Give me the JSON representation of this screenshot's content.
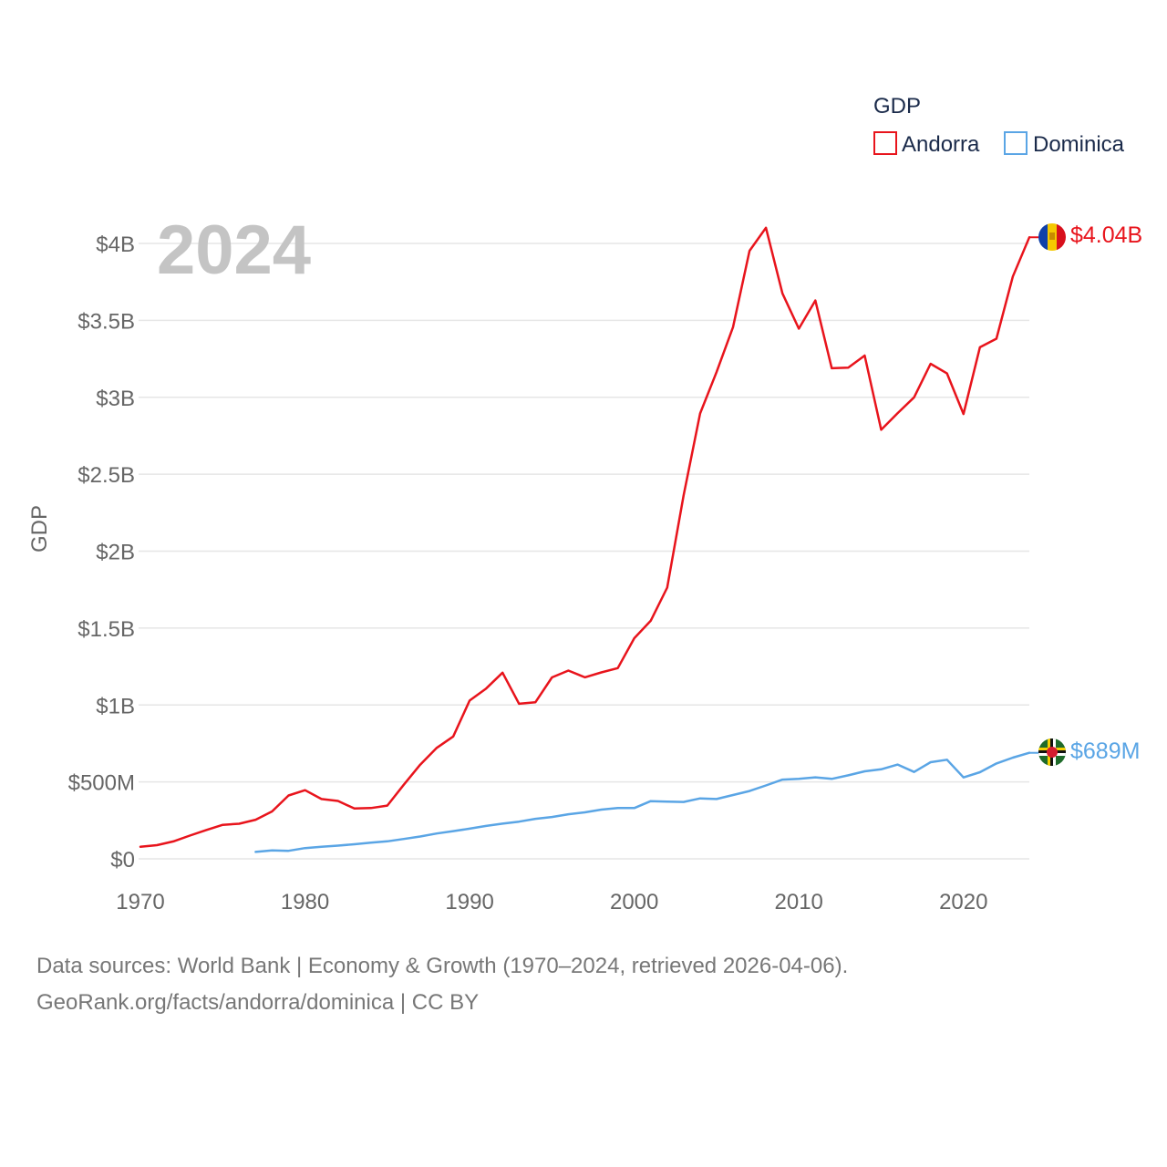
{
  "chart_data": {
    "type": "line",
    "title": "",
    "year_label": "2024",
    "ylabel": "GDP",
    "xlabel": "",
    "xlim": [
      1970,
      2024
    ],
    "ylim": [
      0,
      4000000000
    ],
    "x_ticks": [
      1970,
      1980,
      1990,
      2000,
      2010,
      2020
    ],
    "y_ticks": [
      {
        "value": 0,
        "label": "$0"
      },
      {
        "value": 500000000,
        "label": "$500M"
      },
      {
        "value": 1000000000,
        "label": "$1B"
      },
      {
        "value": 1500000000,
        "label": "$1.5B"
      },
      {
        "value": 2000000000,
        "label": "$2B"
      },
      {
        "value": 2500000000,
        "label": "$2.5B"
      },
      {
        "value": 3000000000,
        "label": "$3B"
      },
      {
        "value": 3500000000,
        "label": "$3.5B"
      },
      {
        "value": 4000000000,
        "label": "$4B"
      }
    ],
    "grid": true,
    "legend": {
      "title": "GDP",
      "placement": "top-right"
    },
    "series": [
      {
        "name": "Andorra",
        "color": "#e8141c",
        "end_label": "$4.04B",
        "flag": "andorra-flag",
        "x": [
          1970,
          1971,
          1972,
          1973,
          1974,
          1975,
          1976,
          1977,
          1978,
          1979,
          1980,
          1981,
          1982,
          1983,
          1984,
          1985,
          1986,
          1987,
          1988,
          1989,
          1990,
          1991,
          1992,
          1993,
          1994,
          1995,
          1996,
          1997,
          1998,
          1999,
          2000,
          2001,
          2002,
          2003,
          2004,
          2005,
          2006,
          2007,
          2008,
          2009,
          2010,
          2011,
          2012,
          2013,
          2014,
          2015,
          2016,
          2017,
          2018,
          2019,
          2020,
          2021,
          2022,
          2023,
          2024
        ],
        "values": [
          78000000,
          89000000,
          113000000,
          151000000,
          187000000,
          221000000,
          228000000,
          254000000,
          308000000,
          412000000,
          446000000,
          389000000,
          376000000,
          327000000,
          330000000,
          346000000,
          482000000,
          612000000,
          721000000,
          795000000,
          1029000000,
          1107000000,
          1210000000,
          1008000000,
          1018000000,
          1179000000,
          1224000000,
          1180000000,
          1212000000,
          1240000000,
          1434000000,
          1547000000,
          1763000000,
          2362000000,
          2895000000,
          3163000000,
          3456000000,
          3952000000,
          4102000000,
          3675000000,
          3446000000,
          3629000000,
          3189000000,
          3193000000,
          3271000000,
          2789000000,
          2897000000,
          3000000000,
          3218000000,
          3155000000,
          2891000000,
          3325000000,
          3381000000,
          3785000000,
          4040000000
        ]
      },
      {
        "name": "Dominica",
        "color": "#5aa5e5",
        "end_label": "$689M",
        "flag": "dominica-flag",
        "x": [
          1977,
          1978,
          1979,
          1980,
          1981,
          1982,
          1983,
          1984,
          1985,
          1986,
          1987,
          1988,
          1989,
          1990,
          1991,
          1992,
          1993,
          1994,
          1995,
          1996,
          1997,
          1998,
          1999,
          2000,
          2001,
          2002,
          2003,
          2004,
          2005,
          2006,
          2007,
          2008,
          2009,
          2010,
          2011,
          2012,
          2013,
          2014,
          2015,
          2016,
          2017,
          2018,
          2019,
          2020,
          2021,
          2022,
          2023,
          2024
        ],
        "values": [
          45000000,
          55000000,
          52000000,
          70000000,
          79000000,
          86000000,
          95000000,
          105000000,
          114000000,
          129000000,
          145000000,
          165000000,
          180000000,
          196000000,
          214000000,
          229000000,
          242000000,
          260000000,
          272000000,
          290000000,
          302000000,
          320000000,
          330000000,
          330000000,
          375000000,
          372000000,
          370000000,
          393000000,
          389000000,
          415000000,
          441000000,
          477000000,
          515000000,
          520000000,
          530000000,
          520000000,
          543000000,
          569000000,
          582000000,
          613000000,
          565000000,
          628000000,
          644000000,
          529000000,
          563000000,
          620000000,
          658000000,
          689000000
        ]
      }
    ]
  },
  "footer": {
    "line1": "Data sources: World Bank | Economy & Growth (1970–2024, retrieved 2026-04-06).",
    "line2": "GeoRank.org/facts/andorra/dominica | CC BY"
  },
  "colors": {
    "grid": "#e6e6e6",
    "tick_text": "#666666",
    "year_text": "#c4c4c4"
  }
}
